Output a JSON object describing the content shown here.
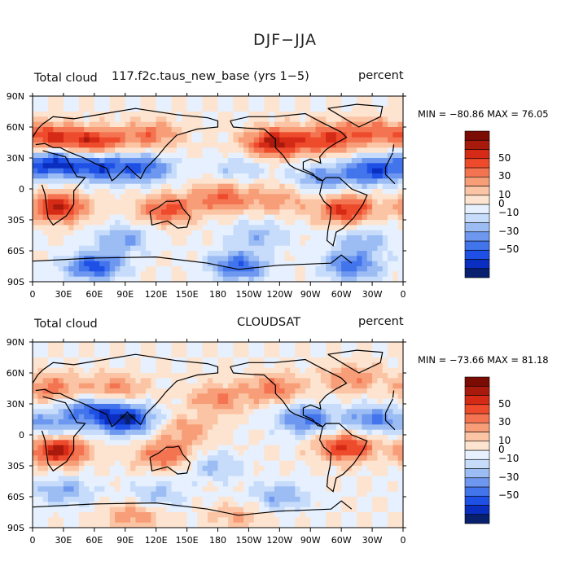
{
  "page_title": "DJF−JJA",
  "colors": {
    "scale": [
      "#08206e",
      "#0a2ec0",
      "#1e50e6",
      "#4274ec",
      "#6e98f0",
      "#9cbcf4",
      "#c6dcfa",
      "#e6f0fe",
      "#fde4d0",
      "#fbc4a4",
      "#f79e78",
      "#f47452",
      "#ee4a2c",
      "#d42a16",
      "#a81a0c",
      "#7a0c04"
    ]
  },
  "chart_data": [
    {
      "type": "heatmap",
      "title_left": "Total cloud",
      "title_center": "117.f2c.taus_new_base (yrs 1−5)",
      "title_right": "percent",
      "min_label": "MIN = −80.86",
      "max_label": "MAX =  76.05",
      "min": -80.86,
      "max": 76.05,
      "x_ticks": [
        "0",
        "30E",
        "60E",
        "90E",
        "120E",
        "150E",
        "180",
        "150W",
        "120W",
        "90W",
        "60W",
        "30W",
        "0"
      ],
      "y_ticks": [
        "90N",
        "60N",
        "30N",
        "0",
        "30S",
        "60S",
        "90S"
      ],
      "colorbar_labels": [
        "50",
        "30",
        "10",
        "0",
        "−10",
        "−30",
        "−50"
      ],
      "anomalies": [
        {
          "lon": 60,
          "lat": 45,
          "value": 55
        },
        {
          "lon": 15,
          "lat": 50,
          "value": 50
        },
        {
          "lon": 115,
          "lat": 52,
          "value": 35
        },
        {
          "lon": 235,
          "lat": 45,
          "value": 65
        },
        {
          "lon": 285,
          "lat": 48,
          "value": 45
        },
        {
          "lon": 325,
          "lat": 55,
          "value": 35
        },
        {
          "lon": 25,
          "lat": -18,
          "value": 60
        },
        {
          "lon": 130,
          "lat": -20,
          "value": 45
        },
        {
          "lon": 185,
          "lat": -8,
          "value": 40
        },
        {
          "lon": 305,
          "lat": -20,
          "value": 55
        },
        {
          "lon": 240,
          "lat": -10,
          "value": 25
        },
        {
          "lon": 20,
          "lat": 25,
          "value": -60
        },
        {
          "lon": 65,
          "lat": 22,
          "value": -55
        },
        {
          "lon": 110,
          "lat": 20,
          "value": -45
        },
        {
          "lon": 330,
          "lat": 18,
          "value": -55
        },
        {
          "lon": 280,
          "lat": 10,
          "value": -35
        },
        {
          "lon": 200,
          "lat": 20,
          "value": -20
        },
        {
          "lon": 90,
          "lat": -48,
          "value": -30
        },
        {
          "lon": 220,
          "lat": -45,
          "value": -25
        },
        {
          "lon": 320,
          "lat": -50,
          "value": -25
        },
        {
          "lon": 60,
          "lat": -75,
          "value": -55
        },
        {
          "lon": 200,
          "lat": -75,
          "value": -50
        },
        {
          "lon": 310,
          "lat": -75,
          "value": -45
        }
      ]
    },
    {
      "type": "heatmap",
      "title_left": "Total cloud",
      "title_center": "CLOUDSAT",
      "title_right": "percent",
      "min_label": "MIN = −73.66",
      "max_label": "MAX =  81.18",
      "min": -73.66,
      "max": 81.18,
      "x_ticks": [
        "0",
        "30E",
        "60E",
        "90E",
        "120E",
        "150E",
        "180",
        "150W",
        "120W",
        "90W",
        "60W",
        "30W",
        "0"
      ],
      "y_ticks": [
        "90N",
        "60N",
        "30N",
        "0",
        "30S",
        "60S",
        "90S"
      ],
      "colorbar_labels": [
        "50",
        "30",
        "10",
        "0",
        "−10",
        "−30",
        "−50"
      ],
      "anomalies": [
        {
          "lon": 25,
          "lat": -15,
          "value": 65
        },
        {
          "lon": 130,
          "lat": -20,
          "value": 40
        },
        {
          "lon": 305,
          "lat": -12,
          "value": 55
        },
        {
          "lon": 20,
          "lat": 45,
          "value": 35
        },
        {
          "lon": 80,
          "lat": 45,
          "value": 30
        },
        {
          "lon": 180,
          "lat": 35,
          "value": 30
        },
        {
          "lon": 235,
          "lat": 45,
          "value": 35
        },
        {
          "lon": 310,
          "lat": 55,
          "value": 30
        },
        {
          "lon": 150,
          "lat": 5,
          "value": 25
        },
        {
          "lon": 90,
          "lat": 15,
          "value": -70
        },
        {
          "lon": 55,
          "lat": 25,
          "value": -40
        },
        {
          "lon": 265,
          "lat": 15,
          "value": -45
        },
        {
          "lon": 330,
          "lat": 15,
          "value": -40
        },
        {
          "lon": 20,
          "lat": 10,
          "value": -30
        },
        {
          "lon": 175,
          "lat": -30,
          "value": -25
        },
        {
          "lon": 30,
          "lat": -55,
          "value": -30
        },
        {
          "lon": 120,
          "lat": -60,
          "value": -25
        },
        {
          "lon": 240,
          "lat": -60,
          "value": -30
        },
        {
          "lon": 100,
          "lat": -78,
          "value": 30
        },
        {
          "lon": 200,
          "lat": -80,
          "value": 20
        }
      ]
    }
  ]
}
